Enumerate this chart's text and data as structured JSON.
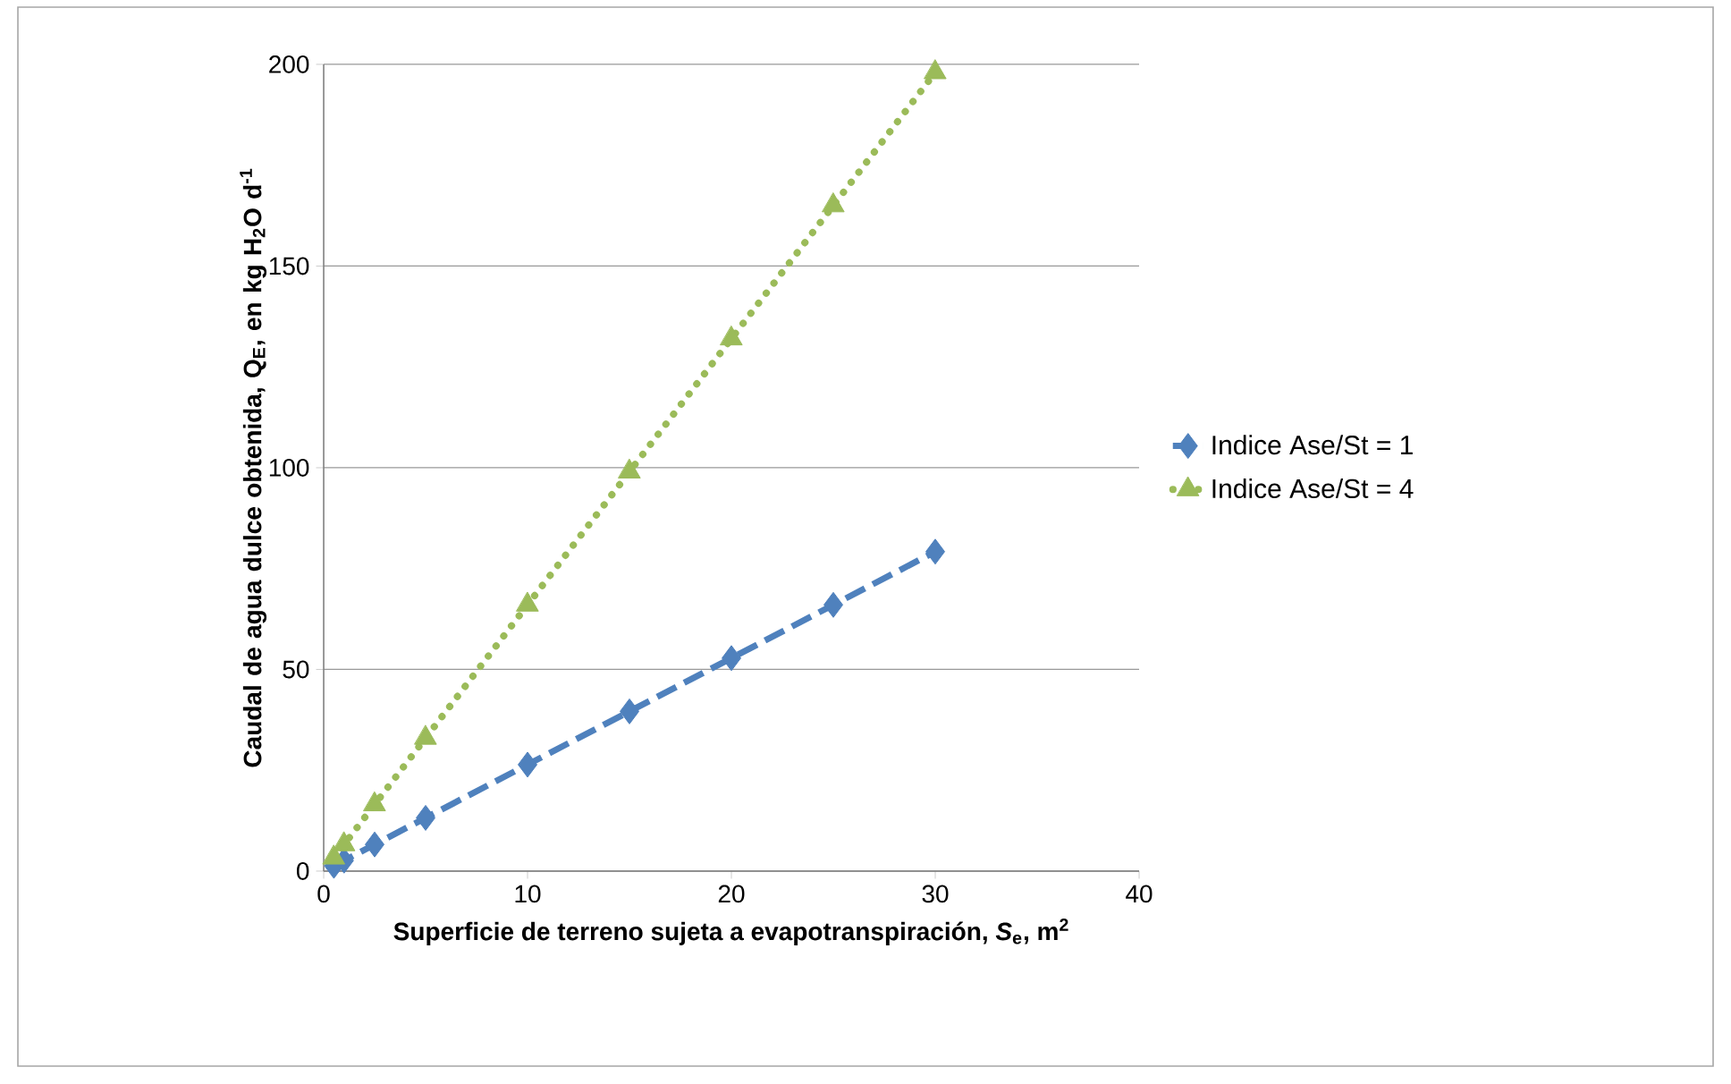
{
  "chart_data": {
    "type": "line",
    "xlabel": "Superficie de terreno sujeta a evapotranspiración, *S*$_{e}$, m$^{2}$",
    "ylabel": "Caudal de agua dulce obtenida, Q$_{E}$, en kg H$_{2}$O d$^{-1}$",
    "x": [
      0.5,
      1,
      2.5,
      5,
      10,
      15,
      20,
      25,
      30
    ],
    "series": [
      {
        "name": "Indice Ase/St = 1",
        "color": "#4f81bd",
        "marker": "diamond",
        "line_style": "dashed",
        "values": [
          1.3,
          2.6,
          6.6,
          13.2,
          26.4,
          39.6,
          52.8,
          66,
          79.2
        ]
      },
      {
        "name": "Indice Ase/St = 4",
        "color": "#9bbb59",
        "marker": "triangle",
        "line_style": "dotted",
        "values": [
          3.3,
          6.6,
          16.5,
          33,
          66,
          99,
          132,
          165,
          198
        ]
      }
    ],
    "xlim": [
      0,
      40
    ],
    "xticks": [
      0,
      10,
      20,
      30,
      40
    ],
    "ylim": [
      0,
      200
    ],
    "yticks": [
      0,
      50,
      100,
      150,
      200
    ],
    "grid": "y",
    "legend": "right"
  }
}
